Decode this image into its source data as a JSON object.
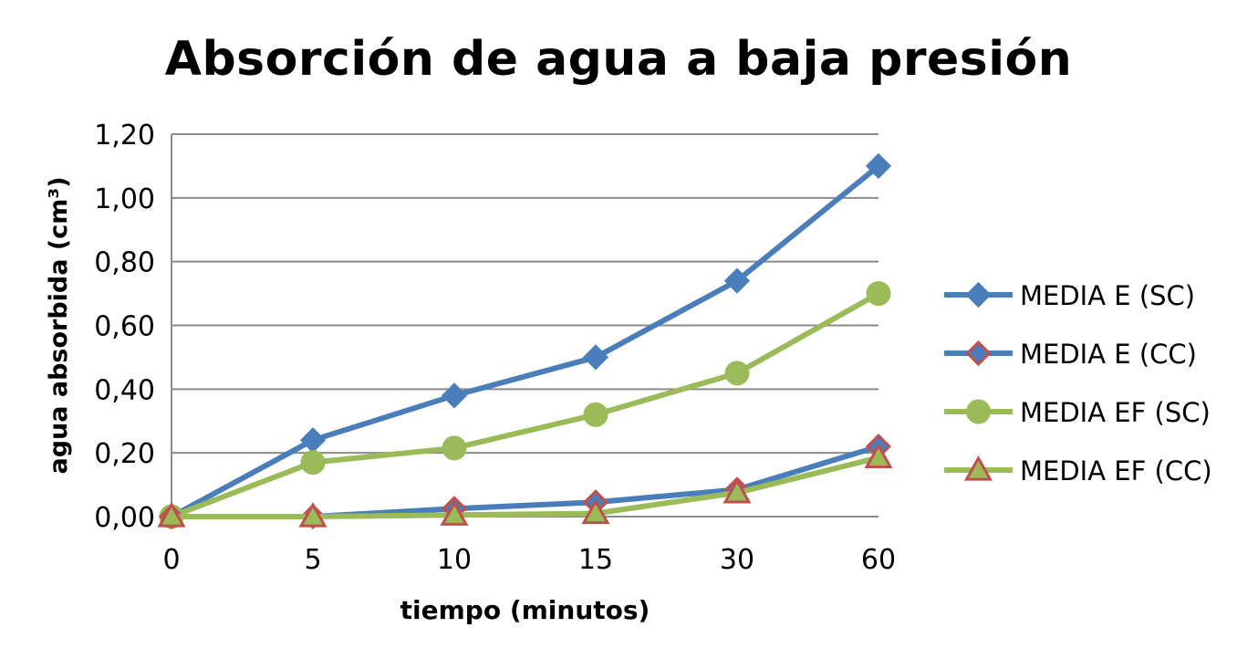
{
  "chart_data": {
    "type": "line",
    "title": "Absorción de agua a baja presión",
    "xlabel": "tiempo (minutos)",
    "ylabel": "agua absorbida (cm³)",
    "categories": [
      "0",
      "5",
      "10",
      "15",
      "30",
      "60"
    ],
    "ylim": [
      0,
      1.2
    ],
    "yticks": [
      "0,00",
      "0,20",
      "0,40",
      "0,60",
      "0,80",
      "1,00",
      "1,20"
    ],
    "ytick_values": [
      0,
      0.2,
      0.4,
      0.6,
      0.8,
      1.0,
      1.2
    ],
    "grid": true,
    "legend_position": "right",
    "series": [
      {
        "name": "MEDIA E (SC)",
        "values": [
          0.0,
          0.24,
          0.38,
          0.5,
          0.74,
          1.1
        ],
        "color": "#4A7EBB",
        "marker": "diamond",
        "marker_fill": "#4A7EBB",
        "marker_stroke": "#4A7EBB"
      },
      {
        "name": "MEDIA E (CC)",
        "values": [
          0.0,
          0.0,
          0.025,
          0.045,
          0.085,
          0.22
        ],
        "color": "#4A7EBB",
        "marker": "diamond",
        "marker_fill": "#4A7EBB",
        "marker_stroke": "#C0504D"
      },
      {
        "name": "MEDIA EF (SC)",
        "values": [
          0.0,
          0.17,
          0.215,
          0.32,
          0.45,
          0.7
        ],
        "color": "#9BBB59",
        "marker": "circle",
        "marker_fill": "#9BBB59",
        "marker_stroke": "#9BBB59"
      },
      {
        "name": "MEDIA EF (CC)",
        "values": [
          0.0,
          0.0,
          0.005,
          0.01,
          0.075,
          0.185
        ],
        "color": "#9BBB59",
        "marker": "triangle",
        "marker_fill": "#9BBB59",
        "marker_stroke": "#C0504D"
      }
    ]
  }
}
